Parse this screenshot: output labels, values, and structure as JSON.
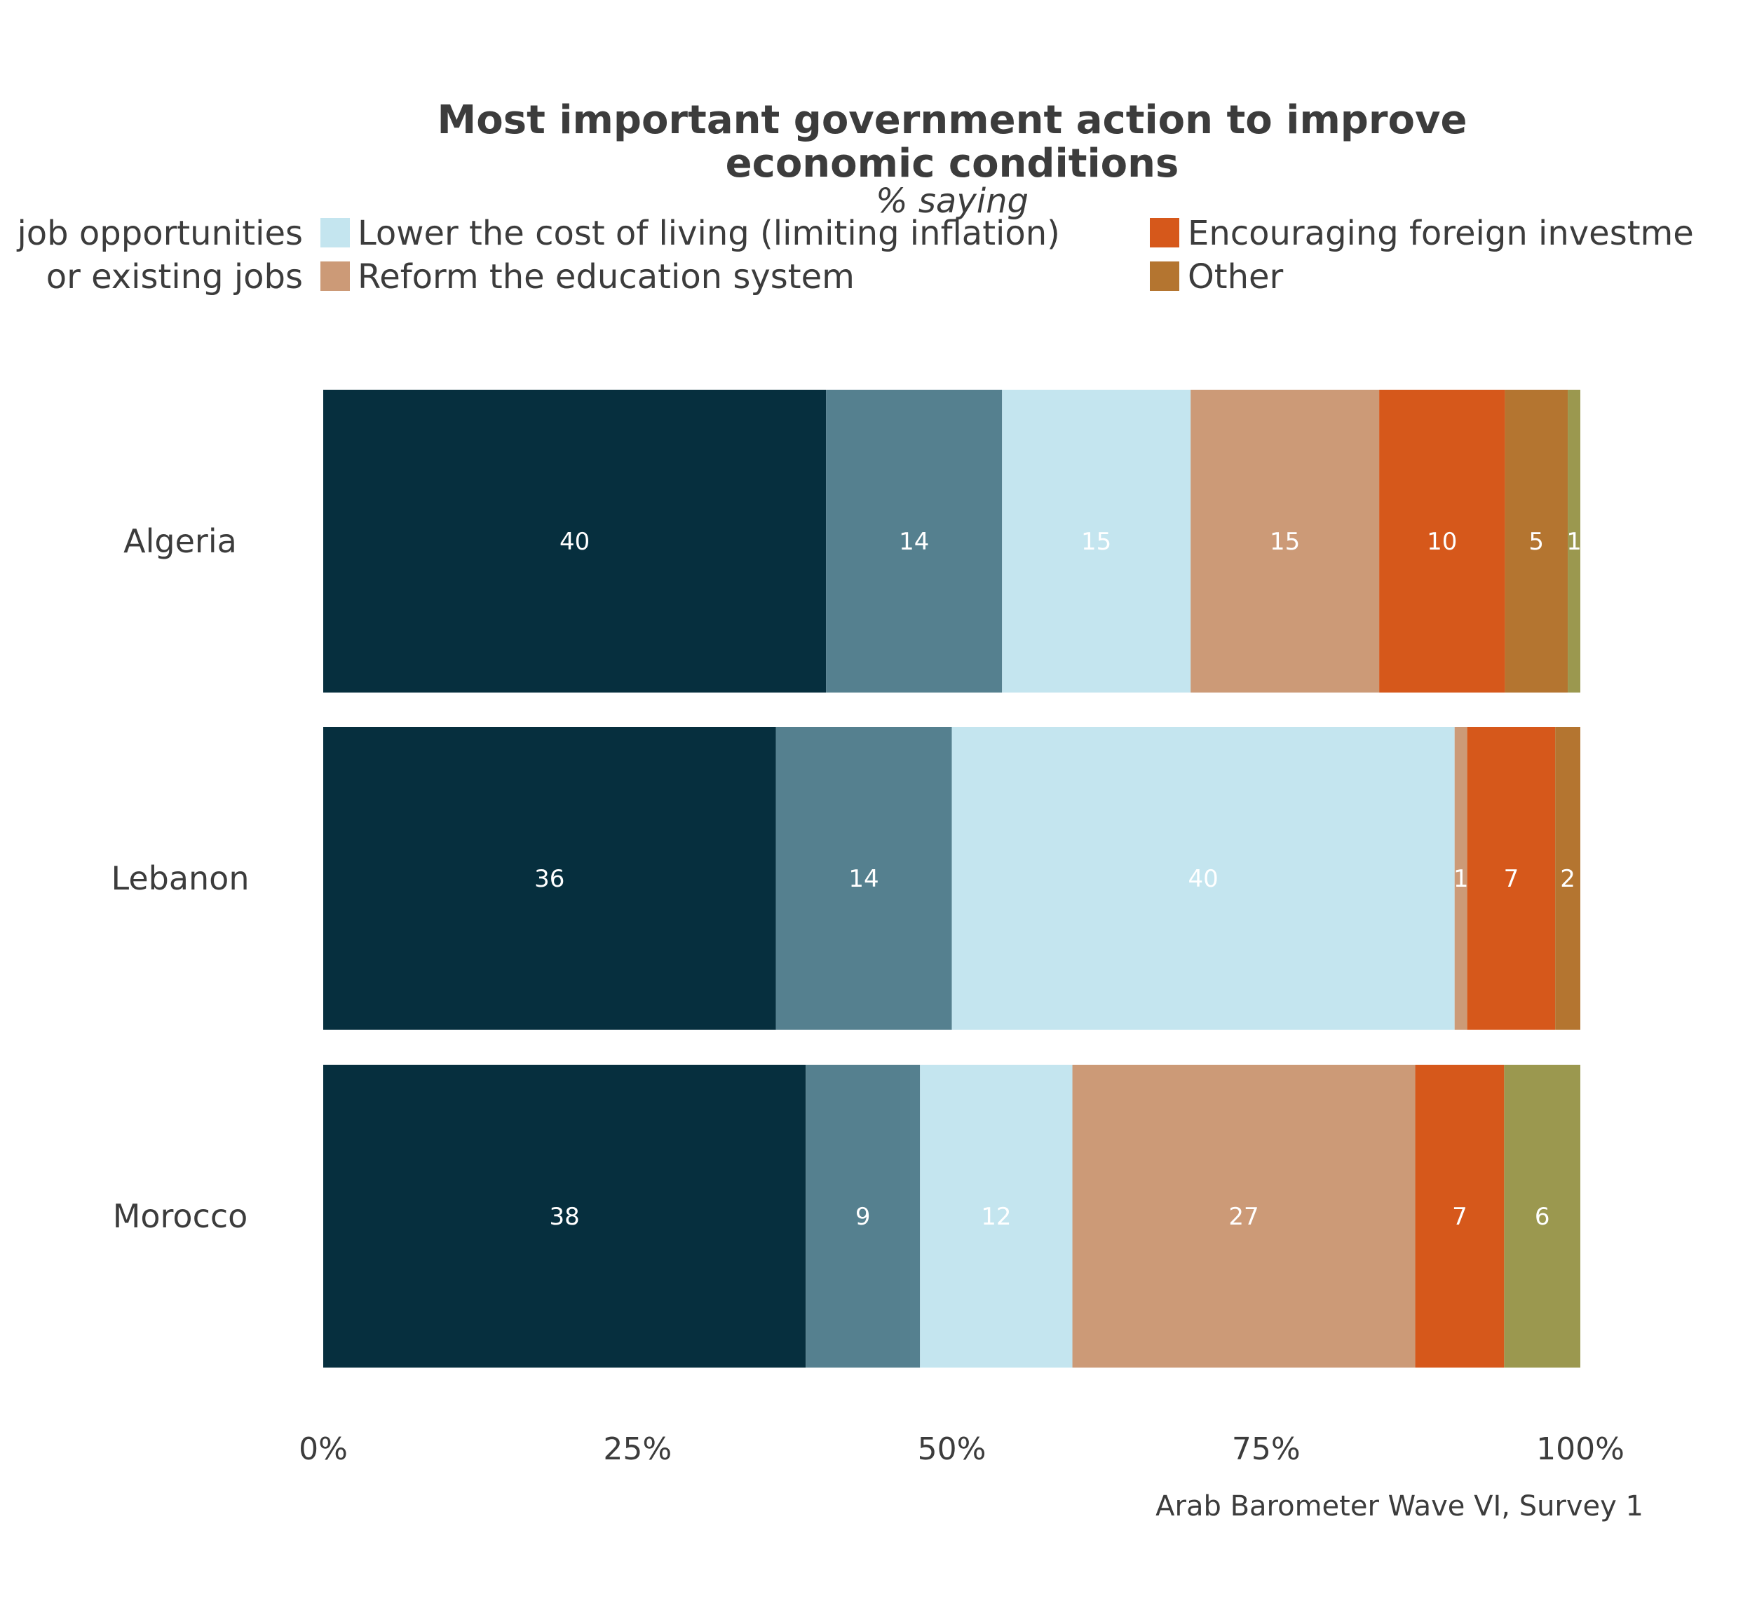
{
  "chart_data": {
    "type": "bar",
    "orientation": "horizontal",
    "stacked": "percent",
    "title_lines": [
      "Most important government action to improve",
      "economic conditions"
    ],
    "subtitle": "% saying",
    "caption": "Arab Barometer Wave VI, Survey 1",
    "categories": [
      "Algeria",
      "Lebanon",
      "Morocco"
    ],
    "xlim": [
      0,
      100
    ],
    "x_ticks": [
      "0%",
      "25%",
      "50%",
      "75%",
      "100%"
    ],
    "grid": false,
    "legend_position": "top",
    "legend_columns": [
      [
        {
          "label": "job opportunities",
          "series": 0
        },
        {
          "label": "or existing jobs",
          "series": 1
        }
      ],
      [
        {
          "label": "Lower the cost of living (limiting inflation)",
          "series": 2
        },
        {
          "label": "Reform the education system",
          "series": 3
        }
      ],
      [
        {
          "label": "Encouraging foreign investme",
          "series": 4
        },
        {
          "label": "Other",
          "series": 5
        }
      ]
    ],
    "series": [
      {
        "color": "#062f3e",
        "label_color": "#ffffff",
        "values": [
          40,
          36,
          38
        ]
      },
      {
        "color": "#55808f",
        "label_color": "#ffffff",
        "values": [
          14,
          14,
          9
        ]
      },
      {
        "color": "#c4e5ef",
        "label_color": "#ffffff",
        "values": [
          15,
          40,
          12
        ]
      },
      {
        "color": "#cc9a77",
        "label_color": "#ffffff",
        "values": [
          15,
          1,
          27
        ]
      },
      {
        "color": "#d6581b",
        "label_color": "#ffffff",
        "values": [
          10,
          7,
          7
        ]
      },
      {
        "color": "#b47530",
        "label_color": "#ffffff",
        "values": [
          5,
          2,
          0
        ]
      },
      {
        "color": "#9b984f",
        "label_color": "#ffffff",
        "values": [
          1,
          0,
          6
        ]
      }
    ],
    "value_labels": [
      [
        "40",
        "14",
        "15",
        "15",
        "10",
        "5",
        "1"
      ],
      [
        "36",
        "14",
        "40",
        "1",
        "7",
        "2",
        ""
      ],
      [
        "38",
        "9",
        "12",
        "27",
        "7",
        "",
        "6"
      ]
    ]
  }
}
